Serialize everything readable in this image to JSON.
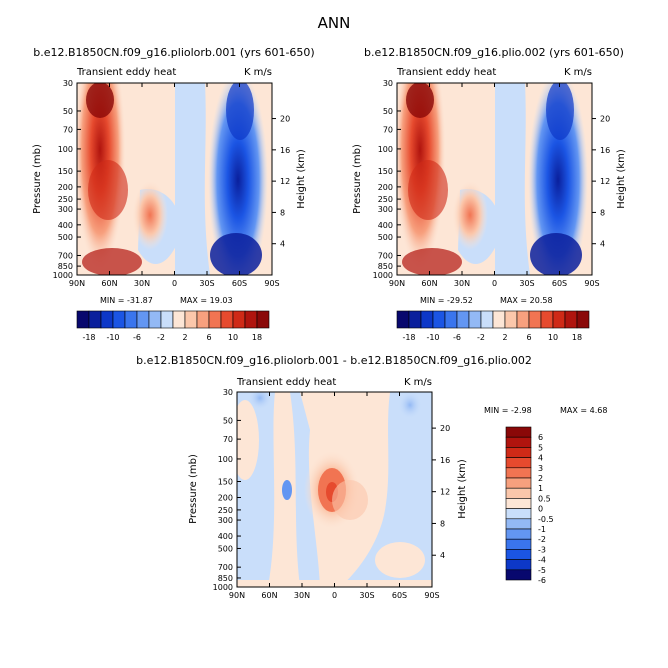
{
  "figure_title": "ANN",
  "chart_data": [
    {
      "type": "heatmap",
      "title": "b.e12.B1850CN.f09_g16.pliolorb.001 (yrs 601-650)",
      "left_label": "Transient eddy heat",
      "right_label": "K m/s",
      "xlabel": "",
      "ylabel": "Pressure (mb)",
      "y2label": "Height (km)",
      "x_ticks": [
        "90N",
        "60N",
        "30N",
        "0",
        "30S",
        "60S",
        "90S"
      ],
      "y_ticks": [
        "30",
        "50",
        "70",
        "100",
        "150",
        "200",
        "250",
        "300",
        "400",
        "500",
        "700",
        "850",
        "1000"
      ],
      "y2_ticks": [
        "20",
        "16",
        "12",
        "8",
        "4"
      ],
      "min_label": "MIN = -31.87",
      "max_label": "MAX = 19.03",
      "colorbar_labels": [
        "-18",
        "-10",
        "-6",
        "-2",
        "2",
        "6",
        "10",
        "18"
      ]
    },
    {
      "type": "heatmap",
      "title": "b.e12.B1850CN.f09_g16.plio.002 (yrs 601-650)",
      "left_label": "Transient eddy heat",
      "right_label": "K m/s",
      "xlabel": "",
      "ylabel": "Pressure (mb)",
      "y2label": "Height (km)",
      "x_ticks": [
        "90N",
        "60N",
        "30N",
        "0",
        "30S",
        "60S",
        "90S"
      ],
      "y_ticks": [
        "30",
        "50",
        "70",
        "100",
        "150",
        "200",
        "250",
        "300",
        "400",
        "500",
        "700",
        "850",
        "1000"
      ],
      "y2_ticks": [
        "20",
        "16",
        "12",
        "8",
        "4"
      ],
      "min_label": "MIN = -29.52",
      "max_label": "MAX = 20.58",
      "colorbar_labels": [
        "-18",
        "-10",
        "-6",
        "-2",
        "2",
        "6",
        "10",
        "18"
      ]
    },
    {
      "type": "heatmap",
      "title": "b.e12.B1850CN.f09_g16.pliolorb.001 - b.e12.B1850CN.f09_g16.plio.002",
      "left_label": "Transient eddy heat",
      "right_label": "K m/s",
      "xlabel": "",
      "ylabel": "Pressure (mb)",
      "y2label": "Height (km)",
      "x_ticks": [
        "90N",
        "60N",
        "30N",
        "0",
        "30S",
        "60S",
        "90S"
      ],
      "y_ticks": [
        "30",
        "50",
        "70",
        "100",
        "150",
        "200",
        "250",
        "300",
        "400",
        "500",
        "700",
        "850",
        "1000"
      ],
      "y2_ticks": [
        "20",
        "16",
        "12",
        "8",
        "4"
      ],
      "min_label": "MIN = -2.98",
      "max_label": "MAX = 4.68",
      "colorbar_labels": [
        "6",
        "5",
        "4",
        "3",
        "2",
        "1",
        "0.5",
        "0",
        "-0.5",
        "-1",
        "-2",
        "-3",
        "-4",
        "-5",
        "-6"
      ]
    }
  ],
  "colors": {
    "bar16": [
      "#08086e",
      "#0a1f9c",
      "#0d38c8",
      "#1b55e4",
      "#3a75ee",
      "#6396f2",
      "#93b9f5",
      "#c9defa",
      "#fde6d6",
      "#fbc7ab",
      "#f7a07e",
      "#f17452",
      "#e64a2e",
      "#cf2a17",
      "#b0140e",
      "#8a0808"
    ],
    "bar14": [
      "#8a0808",
      "#b0140e",
      "#cf2a17",
      "#e64a2e",
      "#f17452",
      "#f7a07e",
      "#fbc7ab",
      "#fde6d6",
      "#c9defa",
      "#93b9f5",
      "#6396f2",
      "#3a75ee",
      "#1b55e4",
      "#0d38c8",
      "#08086e"
    ]
  }
}
